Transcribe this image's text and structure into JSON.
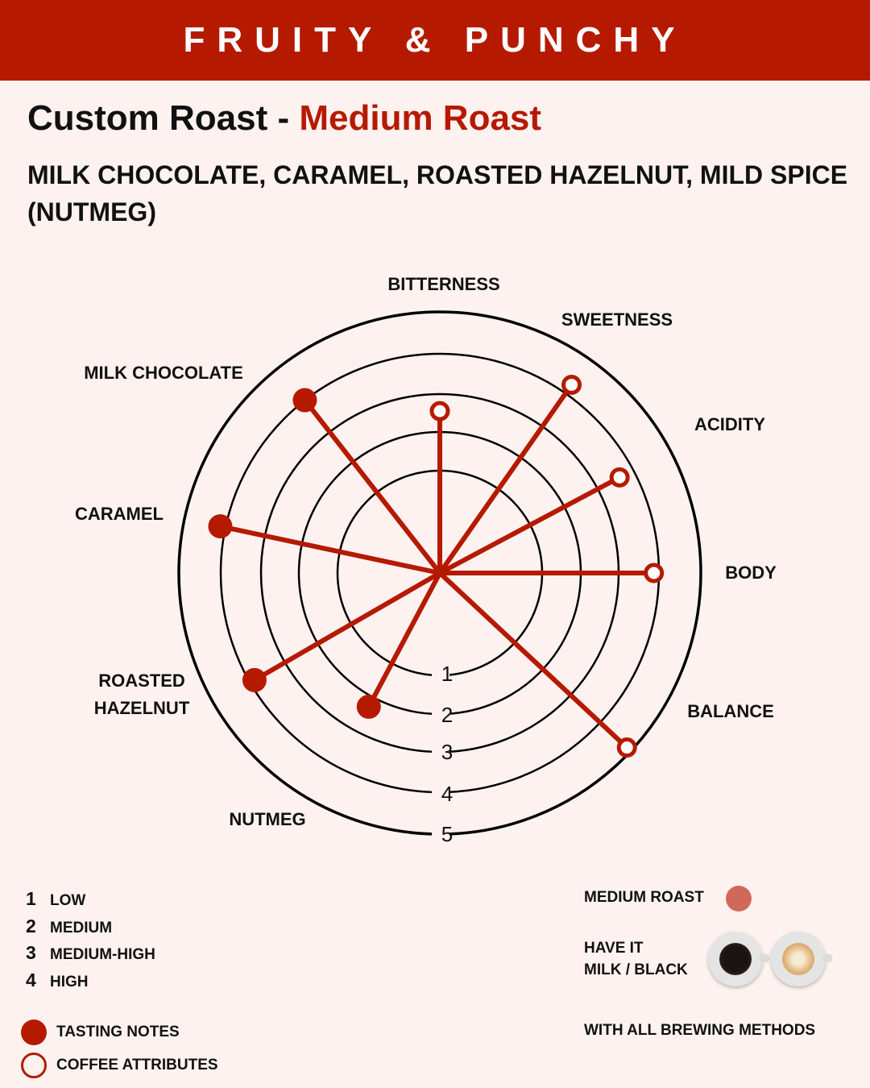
{
  "banner": {
    "title": "FRUITY & PUNCHY"
  },
  "heading": {
    "prefix": "Custom Roast - ",
    "roast": "Medium Roast"
  },
  "notes": "MILK CHOCOLATE, CARAMEL, ROASTED HAZELNUT, MILD SPICE (NUTMEG)",
  "colors": {
    "accent": "#b51a00",
    "background": "#fdf2f0",
    "roast_swatch": "#d0695b"
  },
  "chart_data": {
    "type": "radar",
    "scale": {
      "min": 0,
      "max": 5,
      "rings": [
        1,
        2,
        3,
        4,
        5
      ],
      "ring_labels": [
        "1",
        "2",
        "3",
        "4",
        "5"
      ]
    },
    "axes": [
      {
        "label": "BITTERNESS",
        "value": 3.1,
        "kind": "attribute"
      },
      {
        "label": "SWEETNESS",
        "value": 4.4,
        "kind": "attribute"
      },
      {
        "label": "ACIDITY",
        "value": 3.9,
        "kind": "attribute"
      },
      {
        "label": "BODY",
        "value": 4.1,
        "kind": "attribute"
      },
      {
        "label": "BALANCE",
        "value": 4.9,
        "kind": "attribute"
      },
      {
        "label": "NUTMEG",
        "value": 2.9,
        "kind": "tasting"
      },
      {
        "label": "ROASTED HAZELNUT",
        "lines": [
          "ROASTED",
          "HAZELNUT"
        ],
        "value": 4.1,
        "kind": "tasting"
      },
      {
        "label": "CARAMEL",
        "value": 4.3,
        "kind": "tasting"
      },
      {
        "label": "MILK CHOCOLATE",
        "value": 4.2,
        "kind": "tasting"
      }
    ]
  },
  "legend": {
    "scale": [
      {
        "num": "1",
        "text": "LOW"
      },
      {
        "num": "2",
        "text": "MEDIUM"
      },
      {
        "num": "3",
        "text": "MEDIUM-HIGH"
      },
      {
        "num": "4",
        "text": "HIGH"
      }
    ],
    "tasting_notes": "TASTING NOTES",
    "coffee_attributes": "COFFEE ATTRIBUTES"
  },
  "info": {
    "roast_label": "MEDIUM  ROAST",
    "have_it_line1": "HAVE IT",
    "have_it_line2": "MILK / BLACK",
    "brewing": "WITH ALL BREWING METHODS"
  }
}
